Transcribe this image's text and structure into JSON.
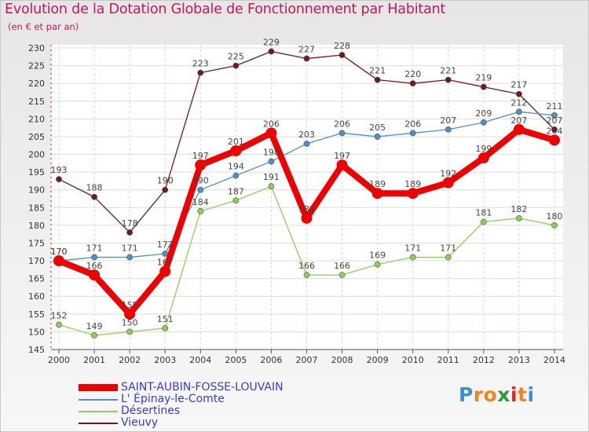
{
  "chart_data": {
    "type": "line",
    "title": "Evolution de la Dotation Globale de Fonctionnement par Habitant",
    "subtitle": "(en € et par an)",
    "xlabel": "",
    "ylabel": "",
    "ylim": [
      145,
      230
    ],
    "yticks": [
      "145",
      "150",
      "155",
      "160",
      "165",
      "170",
      "175",
      "180",
      "185",
      "190",
      "195",
      "200",
      "205",
      "210",
      "215",
      "220",
      "225",
      "230"
    ],
    "x": [
      "2000",
      "2001",
      "2002",
      "2003",
      "2004",
      "2005",
      "2006",
      "2007",
      "2008",
      "2009",
      "2010",
      "2011",
      "2012",
      "2013",
      "2014"
    ],
    "grid": true,
    "legend_position": "bottom-left",
    "series": [
      {
        "name": "Vieuvy",
        "color": "#6e1a1a",
        "values": [
          193,
          188,
          178,
          190,
          223,
          225,
          229,
          227,
          228,
          221,
          220,
          221,
          219,
          217,
          207
        ]
      },
      {
        "name": "L' Épinay-le-Comte",
        "color": "#4f8fc7",
        "values": [
          170,
          171,
          171,
          172,
          190,
          194,
          198,
          203,
          206,
          205,
          206,
          207,
          209,
          212,
          211
        ]
      },
      {
        "name": "Désertines",
        "color": "#8ccf55",
        "values": [
          152,
          149,
          150,
          151,
          184,
          187,
          191,
          166,
          166,
          169,
          171,
          171,
          181,
          182,
          180
        ]
      },
      {
        "name": "SAINT-AUBIN-FOSSE-LOUVAIN",
        "color": "#ee0000",
        "values": [
          170,
          166,
          155,
          167,
          197,
          201,
          206,
          182,
          197,
          189,
          189,
          192,
          199,
          207,
          204
        ]
      }
    ],
    "legend_order": [
      3,
      1,
      2,
      0
    ]
  },
  "logo": {
    "text": "Proxiti",
    "letters": [
      "P",
      "r",
      "o",
      "x",
      "i",
      "t",
      "i"
    ],
    "colors": [
      "#3a8fd9",
      "#f5821f",
      "#f5821f",
      "#2a9a3a",
      "#e52421",
      "#f5821f",
      "#3a8fd9"
    ]
  }
}
